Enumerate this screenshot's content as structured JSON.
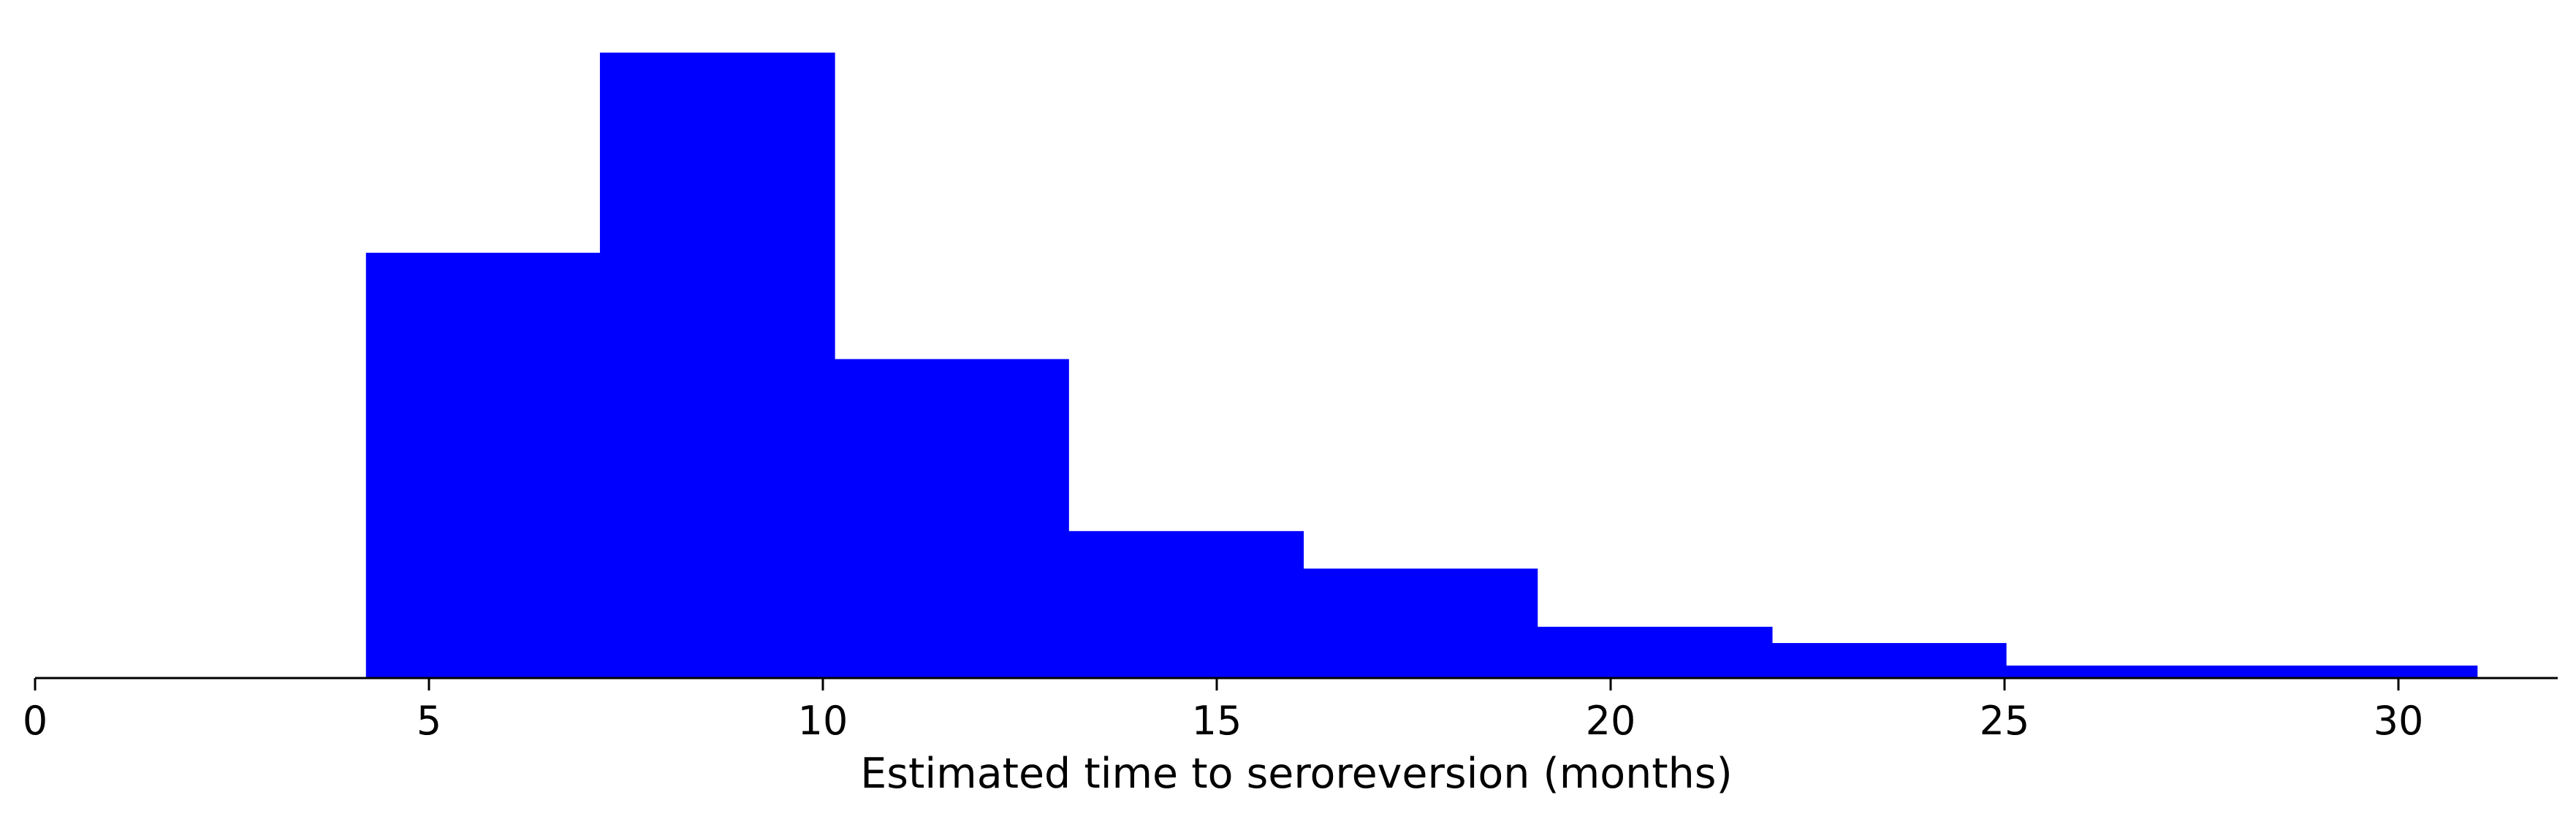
{
  "chart_data": {
    "type": "histogram",
    "xlabel": "Estimated time to seroreversion (months)",
    "ylabel": "",
    "xlim": [
      0,
      32
    ],
    "ylim": [
      0,
      1
    ],
    "x_ticks": [
      0,
      5,
      10,
      15,
      20,
      25,
      30
    ],
    "x_tick_labels": [
      "0",
      "5",
      "10",
      "15",
      "20",
      "25",
      "30"
    ],
    "y_axis_visible": false,
    "grid": false,
    "bars": [
      {
        "x_start": 4.2,
        "x_end": 7.17,
        "height": 0.68
      },
      {
        "x_start": 7.17,
        "x_end": 10.15,
        "height": 1.0
      },
      {
        "x_start": 10.15,
        "x_end": 13.12,
        "height": 0.51
      },
      {
        "x_start": 13.12,
        "x_end": 16.1,
        "height": 0.235
      },
      {
        "x_start": 16.1,
        "x_end": 19.07,
        "height": 0.175
      },
      {
        "x_start": 19.07,
        "x_end": 22.05,
        "height": 0.082
      },
      {
        "x_start": 22.05,
        "x_end": 25.02,
        "height": 0.056
      },
      {
        "x_start": 25.02,
        "x_end": 31.0,
        "height": 0.02
      }
    ],
    "bar_color": "#0000ff",
    "axis_color": "#000000"
  }
}
